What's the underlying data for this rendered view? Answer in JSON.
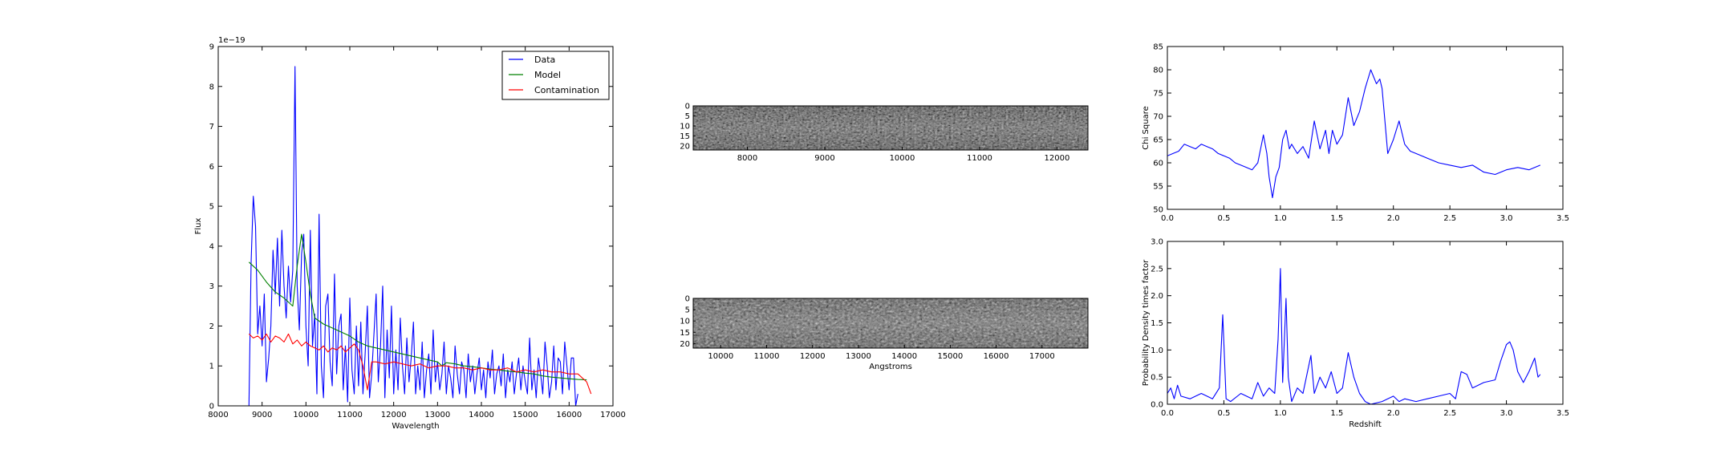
{
  "chart_data": [
    {
      "type": "line",
      "xlabel": "Wavelength",
      "ylabel": "Flux",
      "offset_text": "1e−19",
      "xlim": [
        8000,
        17000
      ],
      "ylim": [
        0,
        9
      ],
      "xticks": [
        8000,
        9000,
        10000,
        11000,
        12000,
        13000,
        14000,
        15000,
        16000,
        17000
      ],
      "yticks": [
        0,
        1,
        2,
        3,
        4,
        5,
        6,
        7,
        8,
        9
      ],
      "legend_position": "top-right",
      "series": [
        {
          "name": "Data",
          "color": "#0000ff",
          "x": [
            8700,
            8750,
            8800,
            8850,
            8900,
            8950,
            9000,
            9050,
            9100,
            9150,
            9200,
            9250,
            9300,
            9350,
            9400,
            9450,
            9500,
            9550,
            9600,
            9650,
            9700,
            9750,
            9800,
            9850,
            9900,
            9950,
            10000,
            10050,
            10100,
            10150,
            10200,
            10250,
            10300,
            10350,
            10400,
            10450,
            10500,
            10550,
            10600,
            10650,
            10700,
            10750,
            10800,
            10850,
            10900,
            10950,
            11000,
            11050,
            11100,
            11150,
            11200,
            11250,
            11300,
            11350,
            11400,
            11450,
            11500,
            11550,
            11600,
            11650,
            11700,
            11750,
            11800,
            11850,
            11900,
            11950,
            12000,
            12050,
            12100,
            12150,
            12200,
            12250,
            12300,
            12350,
            12400,
            12450,
            12500,
            12550,
            12600,
            12650,
            12700,
            12750,
            12800,
            12850,
            12900,
            12950,
            13000,
            13050,
            13100,
            13150,
            13200,
            13250,
            13300,
            13350,
            13400,
            13450,
            13500,
            13550,
            13600,
            13650,
            13700,
            13750,
            13800,
            13850,
            13900,
            13950,
            14000,
            14050,
            14100,
            14150,
            14200,
            14250,
            14300,
            14350,
            14400,
            14450,
            14500,
            14550,
            14600,
            14650,
            14700,
            14750,
            14800,
            14850,
            14900,
            14950,
            15000,
            15050,
            15100,
            15150,
            15200,
            15250,
            15300,
            15350,
            15400,
            15450,
            15500,
            15550,
            15600,
            15650,
            15700,
            15750,
            15800,
            15850,
            15900,
            15950,
            16000,
            16050,
            16100,
            16150,
            16200
          ],
          "y": [
            0,
            3.6,
            5.25,
            4.5,
            1.8,
            2.5,
            1.5,
            2.8,
            0.6,
            1.2,
            2.0,
            3.9,
            2.8,
            4.2,
            2.5,
            4.4,
            3.0,
            2.2,
            3.5,
            2.6,
            3.4,
            8.5,
            3.0,
            1.9,
            3.8,
            4.3,
            2.0,
            1.0,
            4.4,
            1.5,
            2.3,
            0.3,
            4.8,
            1.0,
            0.2,
            2.5,
            2.8,
            1.1,
            0.5,
            3.3,
            0.8,
            2.0,
            2.3,
            0.4,
            1.5,
            0.1,
            2.7,
            0.9,
            0.3,
            2.0,
            0.5,
            2.1,
            0.3,
            1.3,
            2.5,
            0.2,
            0.8,
            1.8,
            2.8,
            0.6,
            1.5,
            3.0,
            0.2,
            1.9,
            0.7,
            2.5,
            0.3,
            1.4,
            0.4,
            2.2,
            1.0,
            0.3,
            1.7,
            0.6,
            1.2,
            2.1,
            0.3,
            1.0,
            0.4,
            1.6,
            0.2,
            0.9,
            1.3,
            0.3,
            1.9,
            0.6,
            1.1,
            0.4,
            0.8,
            1.6,
            0.3,
            1.0,
            0.7,
            0.2,
            1.5,
            0.8,
            0.3,
            1.1,
            0.9,
            0.2,
            1.3,
            0.6,
            1.0,
            0.3,
            0.8,
            1.2,
            0.4,
            0.9,
            0.2,
            1.1,
            0.7,
            1.4,
            0.3,
            0.8,
            1.0,
            0.5,
            1.3,
            0.2,
            0.9,
            0.6,
            1.1,
            0.3,
            0.8,
            1.2,
            0.4,
            1.0,
            0.6,
            0.3,
            1.7,
            0.4,
            0.9,
            0.2,
            1.2,
            0.8,
            0.3,
            1.6,
            1.0,
            0.2,
            0.6,
            1.5,
            0.4,
            1.2,
            1.1,
            0.3,
            1.6,
            1.0,
            0.4,
            1.2,
            1.2,
            0.0,
            0.3
          ]
        },
        {
          "name": "Model",
          "color": "#008000",
          "x": [
            8700,
            8900,
            9100,
            9300,
            9500,
            9650,
            9700,
            9800,
            9900,
            10000,
            10100,
            10200,
            10400,
            10600,
            10800,
            11000,
            11200,
            11400,
            11600,
            11800,
            12000,
            12200,
            12400,
            12600,
            12800,
            13000,
            13100,
            13200,
            13400,
            13600,
            13800,
            14000,
            14200,
            14400,
            14600,
            14800,
            15000,
            15200,
            15400,
            15600,
            15800,
            16000,
            16200,
            16400
          ],
          "y": [
            3.6,
            3.4,
            3.1,
            2.85,
            2.7,
            2.55,
            2.5,
            3.5,
            4.3,
            3.6,
            2.8,
            2.2,
            2.05,
            1.95,
            1.85,
            1.75,
            1.6,
            1.5,
            1.45,
            1.4,
            1.35,
            1.3,
            1.25,
            1.2,
            1.15,
            1.1,
            1.0,
            1.08,
            1.05,
            1.0,
            0.98,
            0.95,
            0.92,
            0.9,
            0.87,
            0.85,
            0.82,
            0.8,
            0.75,
            0.72,
            0.7,
            0.68,
            0.66,
            0.65
          ]
        },
        {
          "name": "Contamination",
          "color": "#ff0000",
          "x": [
            8700,
            8800,
            8900,
            9000,
            9100,
            9200,
            9300,
            9400,
            9500,
            9600,
            9700,
            9800,
            9900,
            10000,
            10100,
            10200,
            10300,
            10400,
            10500,
            10600,
            10700,
            10800,
            10900,
            11000,
            11100,
            11200,
            11300,
            11400,
            11500,
            11600,
            11800,
            12000,
            12200,
            12400,
            12600,
            12800,
            13000,
            13200,
            13400,
            13600,
            13800,
            14000,
            14200,
            14400,
            14600,
            14800,
            15000,
            15200,
            15400,
            15600,
            15800,
            16000,
            16200,
            16400,
            16500
          ],
          "y": [
            1.8,
            1.7,
            1.75,
            1.65,
            1.8,
            1.6,
            1.75,
            1.7,
            1.6,
            1.8,
            1.55,
            1.65,
            1.5,
            1.6,
            1.5,
            1.45,
            1.4,
            1.5,
            1.35,
            1.45,
            1.4,
            1.5,
            1.35,
            1.45,
            1.55,
            1.4,
            1.0,
            0.4,
            1.1,
            1.1,
            1.05,
            1.1,
            1.05,
            1.0,
            1.05,
            0.95,
            1.0,
            1.0,
            0.95,
            0.95,
            0.9,
            0.95,
            0.9,
            0.9,
            0.95,
            0.85,
            0.9,
            0.85,
            0.9,
            0.85,
            0.85,
            0.8,
            0.8,
            0.6,
            0.3
          ]
        }
      ]
    },
    {
      "type": "heatmap",
      "colormap": "gray",
      "xlim": [
        7300,
        12400
      ],
      "ylim": [
        0,
        22
      ],
      "xticks": [
        8000,
        9000,
        10000,
        11000,
        12000
      ],
      "yticks": [
        0,
        5,
        10,
        15,
        20
      ]
    },
    {
      "type": "heatmap",
      "colormap": "gray",
      "xlabel": "Angstroms",
      "xlim": [
        9400,
        18000
      ],
      "ylim": [
        0,
        22
      ],
      "xticks": [
        10000,
        11000,
        12000,
        13000,
        14000,
        15000,
        16000,
        17000
      ],
      "yticks": [
        0,
        5,
        10,
        15,
        20
      ]
    },
    {
      "type": "line",
      "ylabel": "Chi Square",
      "xlim": [
        0.0,
        3.5
      ],
      "ylim": [
        50,
        85
      ],
      "xticks": [
        0.0,
        0.5,
        1.0,
        1.5,
        2.0,
        2.5,
        3.0,
        3.5
      ],
      "yticks": [
        50,
        55,
        60,
        65,
        70,
        75,
        80,
        85
      ],
      "series": [
        {
          "color": "#0000ff",
          "x": [
            0.0,
            0.05,
            0.1,
            0.15,
            0.2,
            0.25,
            0.3,
            0.35,
            0.4,
            0.45,
            0.5,
            0.55,
            0.6,
            0.65,
            0.7,
            0.75,
            0.8,
            0.85,
            0.88,
            0.9,
            0.93,
            0.96,
            0.99,
            1.02,
            1.05,
            1.08,
            1.1,
            1.15,
            1.2,
            1.25,
            1.3,
            1.35,
            1.4,
            1.43,
            1.46,
            1.5,
            1.55,
            1.6,
            1.65,
            1.7,
            1.75,
            1.8,
            1.85,
            1.88,
            1.9,
            1.95,
            2.0,
            2.05,
            2.1,
            2.15,
            2.2,
            2.3,
            2.4,
            2.5,
            2.6,
            2.7,
            2.8,
            2.9,
            3.0,
            3.1,
            3.2,
            3.3
          ],
          "y": [
            61.5,
            62,
            62.5,
            64,
            63.5,
            63,
            64,
            63.5,
            63,
            62,
            61.5,
            61,
            60,
            59.5,
            59,
            58.5,
            60,
            66,
            62,
            57,
            52.5,
            57,
            59,
            65,
            67,
            63,
            64,
            62,
            63.5,
            61,
            69,
            63,
            67,
            62,
            67,
            64,
            66,
            74,
            68,
            71,
            76,
            80,
            77,
            78,
            76,
            62,
            65,
            69,
            64,
            62.5,
            62,
            61,
            60,
            59.5,
            59,
            59.5,
            58,
            57.5,
            58.5,
            59,
            58.5,
            59.5
          ]
        }
      ]
    },
    {
      "type": "line",
      "xlabel": "Redshift",
      "ylabel": "Probability Density times factor",
      "xlim": [
        0.0,
        3.5
      ],
      "ylim": [
        0.0,
        3.0
      ],
      "xticks": [
        0.0,
        0.5,
        1.0,
        1.5,
        2.0,
        2.5,
        3.0,
        3.5
      ],
      "yticks": [
        0.0,
        0.5,
        1.0,
        1.5,
        2.0,
        2.5,
        3.0
      ],
      "series": [
        {
          "color": "#0000ff",
          "x": [
            0.0,
            0.03,
            0.06,
            0.09,
            0.12,
            0.2,
            0.3,
            0.4,
            0.46,
            0.49,
            0.52,
            0.56,
            0.65,
            0.75,
            0.8,
            0.85,
            0.9,
            0.95,
            0.98,
            1.0,
            1.02,
            1.05,
            1.07,
            1.1,
            1.15,
            1.2,
            1.27,
            1.3,
            1.35,
            1.4,
            1.45,
            1.5,
            1.55,
            1.6,
            1.65,
            1.7,
            1.75,
            1.8,
            1.9,
            2.0,
            2.05,
            2.1,
            2.2,
            2.3,
            2.4,
            2.5,
            2.55,
            2.6,
            2.65,
            2.7,
            2.8,
            2.9,
            2.95,
            3.0,
            3.03,
            3.06,
            3.1,
            3.15,
            3.2,
            3.25,
            3.28,
            3.3
          ],
          "y": [
            0.2,
            0.3,
            0.1,
            0.35,
            0.15,
            0.1,
            0.2,
            0.1,
            0.3,
            1.65,
            0.1,
            0.05,
            0.2,
            0.1,
            0.4,
            0.15,
            0.3,
            0.2,
            1.2,
            2.5,
            0.4,
            1.95,
            0.5,
            0.05,
            0.3,
            0.2,
            0.9,
            0.2,
            0.5,
            0.3,
            0.6,
            0.2,
            0.3,
            0.95,
            0.5,
            0.2,
            0.05,
            0.0,
            0.05,
            0.15,
            0.05,
            0.1,
            0.05,
            0.1,
            0.15,
            0.2,
            0.1,
            0.6,
            0.55,
            0.3,
            0.4,
            0.45,
            0.8,
            1.1,
            1.15,
            1.0,
            0.6,
            0.4,
            0.6,
            0.85,
            0.5,
            0.55
          ]
        }
      ]
    }
  ]
}
